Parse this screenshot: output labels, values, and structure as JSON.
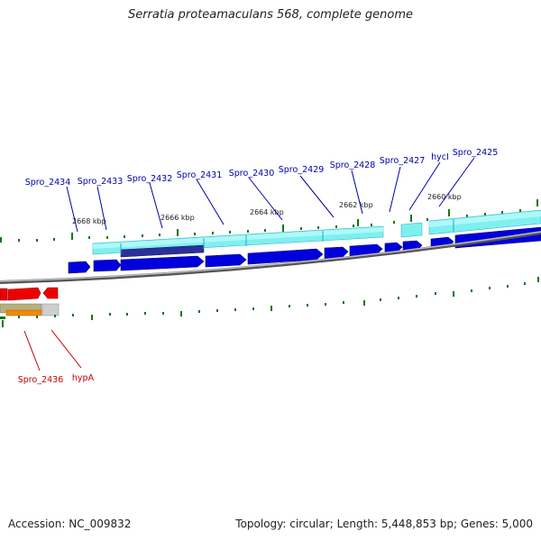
{
  "title": "Serratia proteamaculans 568, complete genome",
  "footer": {
    "accession_label": "Accession:",
    "accession": "NC_009832",
    "topology_label": "Topology:",
    "topology": "circular",
    "length_label": "Length:",
    "length": "5,448,853 bp",
    "genes_label": "Genes:",
    "genes": "5,000"
  },
  "colors": {
    "forward_gene": "#0000dd",
    "reverse_gene": "#ee0000",
    "cds_feature": "#33dddd",
    "backbone": "#888888",
    "tick": "#117711",
    "label_blue": "#0000aa",
    "label_red": "#cc0000"
  },
  "ruler_labels": [
    "2668 kbp",
    "2666 kbp",
    "2664 kbp",
    "2662 kbp",
    "2660 kbp"
  ],
  "gene_labels_forward": [
    "Spro_2434",
    "Spro_2433",
    "Spro_2432",
    "Spro_2431",
    "Spro_2430",
    "Spro_2429",
    "Spro_2428",
    "Spro_2427",
    "hycI",
    "Spro_2425"
  ],
  "gene_labels_reverse": [
    "Spro_2436",
    "hypA"
  ]
}
